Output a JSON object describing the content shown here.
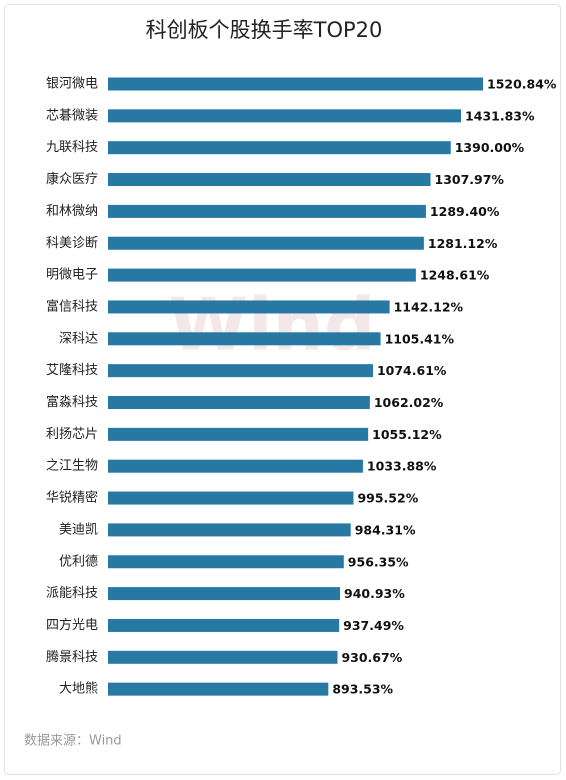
{
  "chart_data": {
    "type": "bar",
    "orientation": "horizontal",
    "title": "科创板个股换手率TOP20",
    "categories": [
      "银河微电",
      "芯碁微装",
      "九联科技",
      "康众医疗",
      "和林微纳",
      "科美诊断",
      "明微电子",
      "富信科技",
      "深科达",
      "艾隆科技",
      "富淼科技",
      "利扬芯片",
      "之江生物",
      "华锐精密",
      "美迪凯",
      "优利德",
      "派能科技",
      "四方光电",
      "腾景科技",
      "大地熊"
    ],
    "values": [
      1520.84,
      1431.83,
      1390.0,
      1307.97,
      1289.4,
      1281.12,
      1248.61,
      1142.12,
      1105.41,
      1074.61,
      1062.02,
      1055.12,
      1033.88,
      995.52,
      984.31,
      956.35,
      940.93,
      937.49,
      930.67,
      893.53
    ],
    "value_labels": [
      "1520.84%",
      "1431.83%",
      "1390.00%",
      "1307.97%",
      "1289.40%",
      "1281.12%",
      "1248.61%",
      "1142.12%",
      "1105.41%",
      "1074.61%",
      "1062.02%",
      "1055.12%",
      "1033.88%",
      "995.52%",
      "984.31%",
      "956.35%",
      "940.93%",
      "937.49%",
      "930.67%",
      "893.53%"
    ],
    "color": "#2878a4",
    "source": "数据来源：Wind",
    "watermark": "Wind"
  }
}
